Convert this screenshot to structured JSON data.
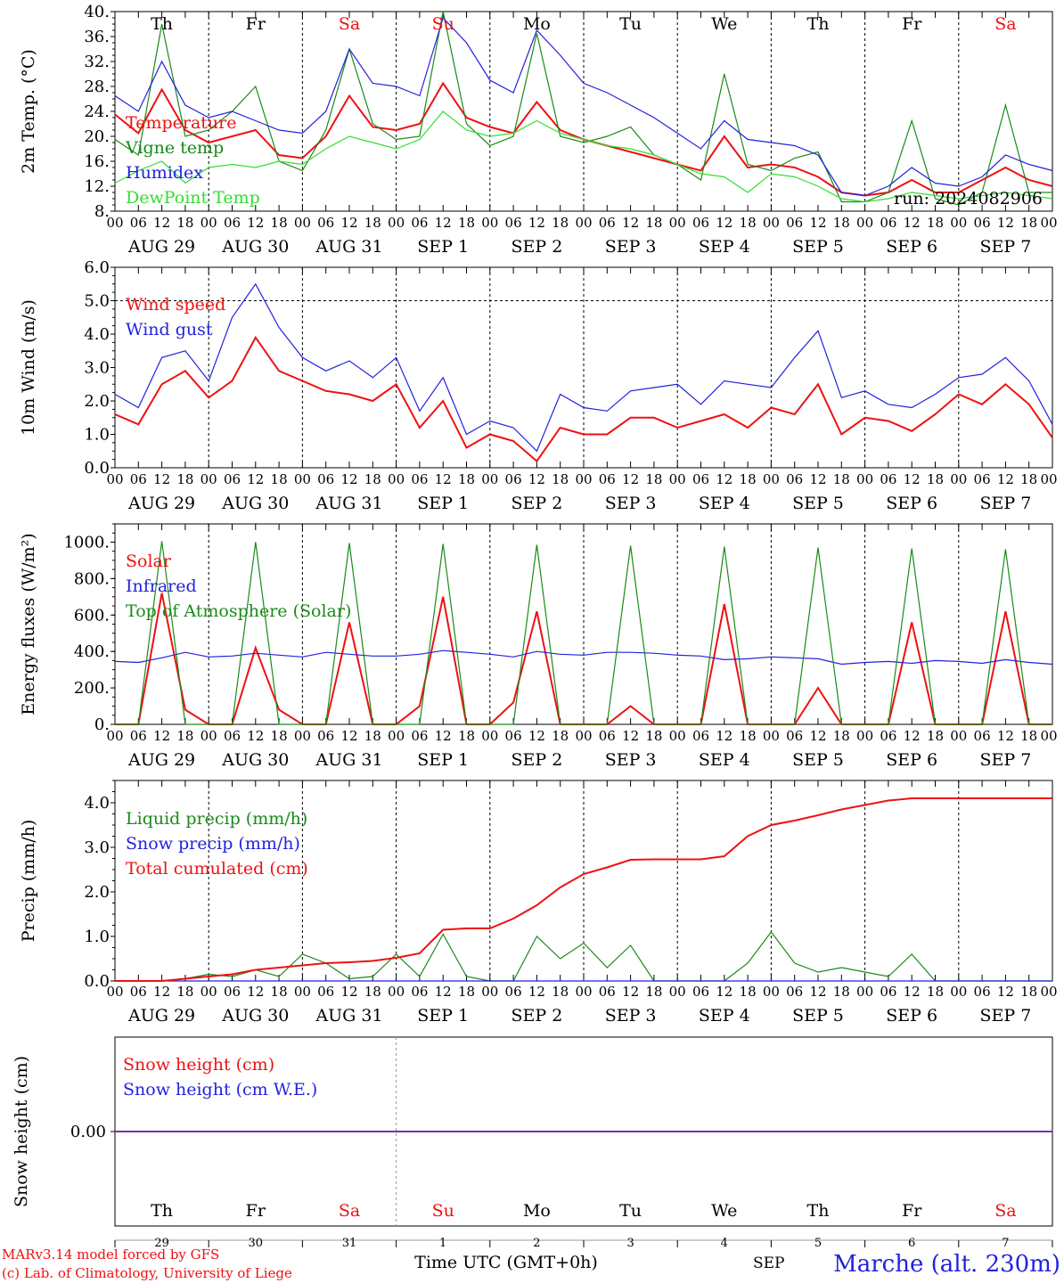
{
  "colors": {
    "red": "#ee1111",
    "green": "#1a8a1a",
    "blue": "#2222dd",
    "lightgreen": "#33dd33",
    "purple": "#7733aa",
    "black": "#000000"
  },
  "axis": {
    "hour_labels": [
      "00",
      "06",
      "12",
      "18"
    ],
    "end_hour_label": "00",
    "dates": [
      "AUG 29",
      "AUG 30",
      "AUG 31",
      "SEP  1",
      "SEP  2",
      "SEP  3",
      "SEP  4",
      "SEP  5",
      "SEP  6",
      "SEP  7"
    ],
    "weekdays": [
      "Th",
      "Fr",
      "Sa",
      "Su",
      "Mo",
      "Tu",
      "We",
      "Th",
      "Fr",
      "Sa"
    ],
    "weekend": [
      false,
      false,
      true,
      true,
      false,
      false,
      false,
      false,
      false,
      true
    ],
    "day_numbers": [
      "29",
      "30",
      "31",
      "1",
      "2",
      "3",
      "4",
      "5",
      "6",
      "7"
    ],
    "month_label": "SEP",
    "time_label": "Time UTC (GMT+0h)"
  },
  "footer": {
    "model": "MARv3.14 model forced by GFS",
    "credit": "(c) Lab. of Climatology, University of Liege",
    "station": "Marche (alt. 230m)"
  },
  "chart_data": [
    {
      "id": "temp",
      "type": "line",
      "ylabel": "2m Temp. (°C)",
      "ylim": [
        8,
        40
      ],
      "yticks": [
        "8.",
        "12.",
        "16.",
        "20.",
        "24.",
        "28.",
        "32.",
        "36.",
        "40."
      ],
      "run": "run: 2024082906",
      "series": [
        {
          "name": "Temperature",
          "color": "red",
          "x": [
            0,
            6,
            12,
            18,
            24,
            30,
            36,
            42,
            48,
            54,
            60,
            66,
            72,
            78,
            84,
            90,
            96,
            102,
            108,
            114,
            120,
            126,
            132,
            138,
            144,
            150,
            156,
            162,
            168,
            174,
            180,
            186,
            192,
            198,
            204,
            210,
            216,
            222,
            228,
            234,
            240
          ],
          "values": [
            23.5,
            20.5,
            27.5,
            21,
            19,
            20,
            21,
            17,
            16.5,
            20,
            26.5,
            21.5,
            21,
            22,
            28.5,
            23,
            21.5,
            20.5,
            25.5,
            21,
            19.5,
            18.5,
            17.5,
            16.5,
            15.5,
            14.5,
            20,
            15,
            15.5,
            15,
            13.5,
            11,
            10.5,
            11,
            13,
            11,
            11,
            13,
            15,
            13,
            12
          ]
        },
        {
          "name": "Vigne temp",
          "color": "green",
          "x": [
            0,
            6,
            12,
            18,
            24,
            30,
            36,
            42,
            48,
            54,
            60,
            66,
            72,
            78,
            84,
            90,
            96,
            102,
            108,
            114,
            120,
            126,
            132,
            138,
            144,
            150,
            156,
            162,
            168,
            174,
            180,
            186,
            192,
            198,
            204,
            210,
            216,
            222,
            228,
            234,
            240
          ],
          "values": [
            19.5,
            17,
            38,
            20,
            21,
            24,
            28,
            16,
            14.5,
            21,
            34,
            22,
            19.5,
            20,
            40,
            22,
            18.5,
            20,
            36.5,
            20,
            19,
            20,
            21.5,
            17,
            15.5,
            13,
            30,
            15.5,
            14.5,
            16.5,
            17.5,
            9.5,
            9.5,
            11,
            22.5,
            10,
            9,
            11,
            25,
            11,
            11
          ]
        },
        {
          "name": "Humidex",
          "color": "blue",
          "x": [
            0,
            6,
            12,
            18,
            24,
            30,
            36,
            42,
            48,
            54,
            60,
            66,
            72,
            78,
            84,
            90,
            96,
            102,
            108,
            114,
            120,
            126,
            132,
            138,
            144,
            150,
            156,
            162,
            168,
            174,
            180,
            186,
            192,
            198,
            204,
            210,
            216,
            222,
            228,
            234,
            240
          ],
          "values": [
            26.5,
            24,
            32,
            25,
            23,
            24,
            22.5,
            21,
            20.5,
            24,
            34,
            28.5,
            28,
            26.5,
            39,
            35,
            29,
            27,
            37,
            33,
            28.5,
            27,
            25,
            23,
            20.5,
            18,
            22.5,
            19.5,
            19,
            18.5,
            17,
            11,
            10.5,
            12,
            15,
            12.5,
            12,
            13.5,
            17,
            15.5,
            14.5
          ]
        },
        {
          "name": "DewPoint Temp",
          "color": "lightgreen",
          "x": [
            0,
            6,
            12,
            18,
            24,
            30,
            36,
            42,
            48,
            54,
            60,
            66,
            72,
            78,
            84,
            90,
            96,
            102,
            108,
            114,
            120,
            126,
            132,
            138,
            144,
            150,
            156,
            162,
            168,
            174,
            180,
            186,
            192,
            198,
            204,
            210,
            216,
            222,
            228,
            234,
            240
          ],
          "values": [
            12.5,
            14.5,
            16,
            12.5,
            15,
            15.5,
            15,
            16,
            15.5,
            18,
            20,
            19,
            18,
            19.5,
            24,
            21,
            20,
            20.5,
            22.5,
            20.5,
            19.5,
            18.5,
            18,
            17,
            15.5,
            14,
            13.5,
            11,
            14,
            13.5,
            12,
            10,
            9.5,
            10,
            11,
            10.5,
            10,
            10.5,
            11,
            10.5,
            10
          ]
        }
      ]
    },
    {
      "id": "wind",
      "type": "line",
      "ylabel": "10m Wind (m/s)",
      "ylim": [
        0,
        6
      ],
      "yticks": [
        "0.0",
        "1.0",
        "2.0",
        "3.0",
        "4.0",
        "5.0",
        "6.0"
      ],
      "ref_line": 5.0,
      "series": [
        {
          "name": "Wind speed",
          "color": "red",
          "x": [
            0,
            6,
            12,
            18,
            24,
            30,
            36,
            42,
            48,
            54,
            60,
            66,
            72,
            78,
            84,
            90,
            96,
            102,
            108,
            114,
            120,
            126,
            132,
            138,
            144,
            150,
            156,
            162,
            168,
            174,
            180,
            186,
            192,
            198,
            204,
            210,
            216,
            222,
            228,
            234,
            240
          ],
          "values": [
            1.6,
            1.3,
            2.5,
            2.9,
            2.1,
            2.6,
            3.9,
            2.9,
            2.6,
            2.3,
            2.2,
            2.0,
            2.5,
            1.2,
            2.0,
            0.6,
            1.0,
            0.8,
            0.2,
            1.2,
            1.0,
            1.0,
            1.5,
            1.5,
            1.2,
            1.4,
            1.6,
            1.2,
            1.8,
            1.6,
            2.5,
            1.0,
            1.5,
            1.4,
            1.1,
            1.6,
            2.2,
            1.9,
            2.5,
            1.9,
            0.9
          ]
        },
        {
          "name": "Wind gust",
          "color": "blue",
          "x": [
            0,
            6,
            12,
            18,
            24,
            30,
            36,
            42,
            48,
            54,
            60,
            66,
            72,
            78,
            84,
            90,
            96,
            102,
            108,
            114,
            120,
            126,
            132,
            138,
            144,
            150,
            156,
            162,
            168,
            174,
            180,
            186,
            192,
            198,
            204,
            210,
            216,
            222,
            228,
            234,
            240
          ],
          "values": [
            2.2,
            1.8,
            3.3,
            3.5,
            2.6,
            4.5,
            5.5,
            4.2,
            3.3,
            2.9,
            3.2,
            2.7,
            3.3,
            1.7,
            2.7,
            1.0,
            1.4,
            1.2,
            0.5,
            2.2,
            1.8,
            1.7,
            2.3,
            2.4,
            2.5,
            1.9,
            2.6,
            2.5,
            2.4,
            3.3,
            4.1,
            2.1,
            2.3,
            1.9,
            1.8,
            2.2,
            2.7,
            2.8,
            3.3,
            2.6,
            1.3
          ]
        }
      ]
    },
    {
      "id": "energy",
      "type": "line",
      "ylabel": "Energy fluxes (W/m²)",
      "ylim": [
        0,
        1100
      ],
      "yticks": [
        "0.",
        "200.",
        "400.",
        "600.",
        "800.",
        "1000."
      ],
      "series": [
        {
          "name": "Solar",
          "color": "red",
          "x": [
            0,
            6,
            12,
            18,
            24,
            30,
            36,
            42,
            48,
            54,
            60,
            66,
            72,
            78,
            84,
            90,
            96,
            102,
            108,
            114,
            120,
            126,
            132,
            138,
            144,
            150,
            156,
            162,
            168,
            174,
            180,
            186,
            192,
            198,
            204,
            210,
            216,
            222,
            228,
            234,
            240
          ],
          "values": [
            0,
            0,
            720,
            80,
            0,
            0,
            420,
            80,
            0,
            0,
            560,
            0,
            0,
            100,
            700,
            0,
            0,
            120,
            620,
            0,
            0,
            0,
            100,
            0,
            0,
            0,
            660,
            0,
            0,
            0,
            200,
            0,
            0,
            0,
            560,
            0,
            0,
            0,
            620,
            0,
            0
          ]
        },
        {
          "name": "Infrared",
          "color": "blue",
          "x": [
            0,
            6,
            12,
            18,
            24,
            30,
            36,
            42,
            48,
            54,
            60,
            66,
            72,
            78,
            84,
            90,
            96,
            102,
            108,
            114,
            120,
            126,
            132,
            138,
            144,
            150,
            156,
            162,
            168,
            174,
            180,
            186,
            192,
            198,
            204,
            210,
            216,
            222,
            228,
            234,
            240
          ],
          "values": [
            345,
            340,
            365,
            395,
            370,
            375,
            390,
            380,
            370,
            395,
            385,
            375,
            375,
            385,
            405,
            395,
            385,
            370,
            400,
            385,
            380,
            395,
            395,
            390,
            380,
            375,
            355,
            360,
            370,
            365,
            360,
            330,
            340,
            345,
            335,
            350,
            345,
            335,
            355,
            340,
            330
          ]
        },
        {
          "name": "Top of Atmosphere (Solar)",
          "color": "green",
          "x": [
            0,
            6,
            12,
            18,
            24,
            30,
            36,
            42,
            48,
            54,
            60,
            66,
            72,
            78,
            84,
            90,
            96,
            102,
            108,
            114,
            120,
            126,
            132,
            138,
            144,
            150,
            156,
            162,
            168,
            174,
            180,
            186,
            192,
            198,
            204,
            210,
            216,
            222,
            228,
            234,
            240
          ],
          "values": [
            0,
            0,
            1005,
            0,
            0,
            0,
            1000,
            0,
            0,
            0,
            995,
            0,
            0,
            0,
            990,
            0,
            0,
            0,
            985,
            0,
            0,
            0,
            980,
            0,
            0,
            0,
            975,
            0,
            0,
            0,
            970,
            0,
            0,
            0,
            965,
            0,
            0,
            0,
            960,
            0,
            0
          ]
        }
      ]
    },
    {
      "id": "precip",
      "type": "line",
      "ylabel": "Precip (mm/h)",
      "ylim": [
        0,
        4.5
      ],
      "yticks": [
        "0.0",
        "1.0",
        "2.0",
        "3.0",
        "4.0"
      ],
      "series": [
        {
          "name": "Liquid precip (mm/h)",
          "color": "green",
          "x": [
            0,
            6,
            12,
            18,
            24,
            30,
            36,
            42,
            48,
            54,
            60,
            66,
            72,
            78,
            84,
            90,
            96,
            102,
            108,
            114,
            120,
            126,
            132,
            138,
            144,
            150,
            156,
            162,
            168,
            174,
            180,
            186,
            192,
            198,
            204,
            210,
            216,
            222,
            228,
            234,
            240
          ],
          "values": [
            0,
            0,
            0,
            0.05,
            0.15,
            0.1,
            0.25,
            0.1,
            0.6,
            0.4,
            0.05,
            0.1,
            0.6,
            0.1,
            1.05,
            0.1,
            0,
            0,
            1.0,
            0.5,
            0.85,
            0.3,
            0.8,
            0,
            0,
            0,
            0,
            0.4,
            1.1,
            0.4,
            0.2,
            0.3,
            0.2,
            0.1,
            0.6,
            0,
            0,
            0,
            0,
            0,
            0
          ]
        },
        {
          "name": "Snow precip (mm/h)",
          "color": "blue",
          "x": [
            0,
            240
          ],
          "values": [
            0,
            0
          ]
        },
        {
          "name": "Total cumulated (cm)",
          "color": "red",
          "x": [
            0,
            6,
            12,
            18,
            24,
            30,
            36,
            42,
            48,
            54,
            60,
            66,
            72,
            78,
            84,
            90,
            96,
            102,
            108,
            114,
            120,
            126,
            132,
            138,
            144,
            150,
            156,
            162,
            168,
            174,
            180,
            186,
            192,
            198,
            204,
            210,
            216,
            222,
            228,
            234,
            240
          ],
          "values": [
            0,
            0,
            0,
            0.05,
            0.1,
            0.15,
            0.25,
            0.3,
            0.35,
            0.4,
            0.42,
            0.45,
            0.52,
            0.62,
            1.15,
            1.18,
            1.18,
            1.4,
            1.7,
            2.1,
            2.4,
            2.55,
            2.72,
            2.73,
            2.73,
            2.73,
            2.8,
            3.25,
            3.5,
            3.6,
            3.72,
            3.85,
            3.95,
            4.05,
            4.1,
            4.1,
            4.1,
            4.1,
            4.1,
            4.1,
            4.1
          ]
        }
      ]
    },
    {
      "id": "snow",
      "type": "line",
      "ylabel": "Snow height (cm)",
      "ylim": [
        -1,
        1
      ],
      "yticks": [
        "0.00"
      ],
      "series": [
        {
          "name": "Snow height (cm)",
          "color": "red",
          "x": [
            0,
            240
          ],
          "values": [
            0,
            0
          ]
        },
        {
          "name": "Snow height (cm W.E.)",
          "color": "blue",
          "x": [
            0,
            240
          ],
          "values": [
            0,
            0
          ]
        }
      ]
    }
  ]
}
